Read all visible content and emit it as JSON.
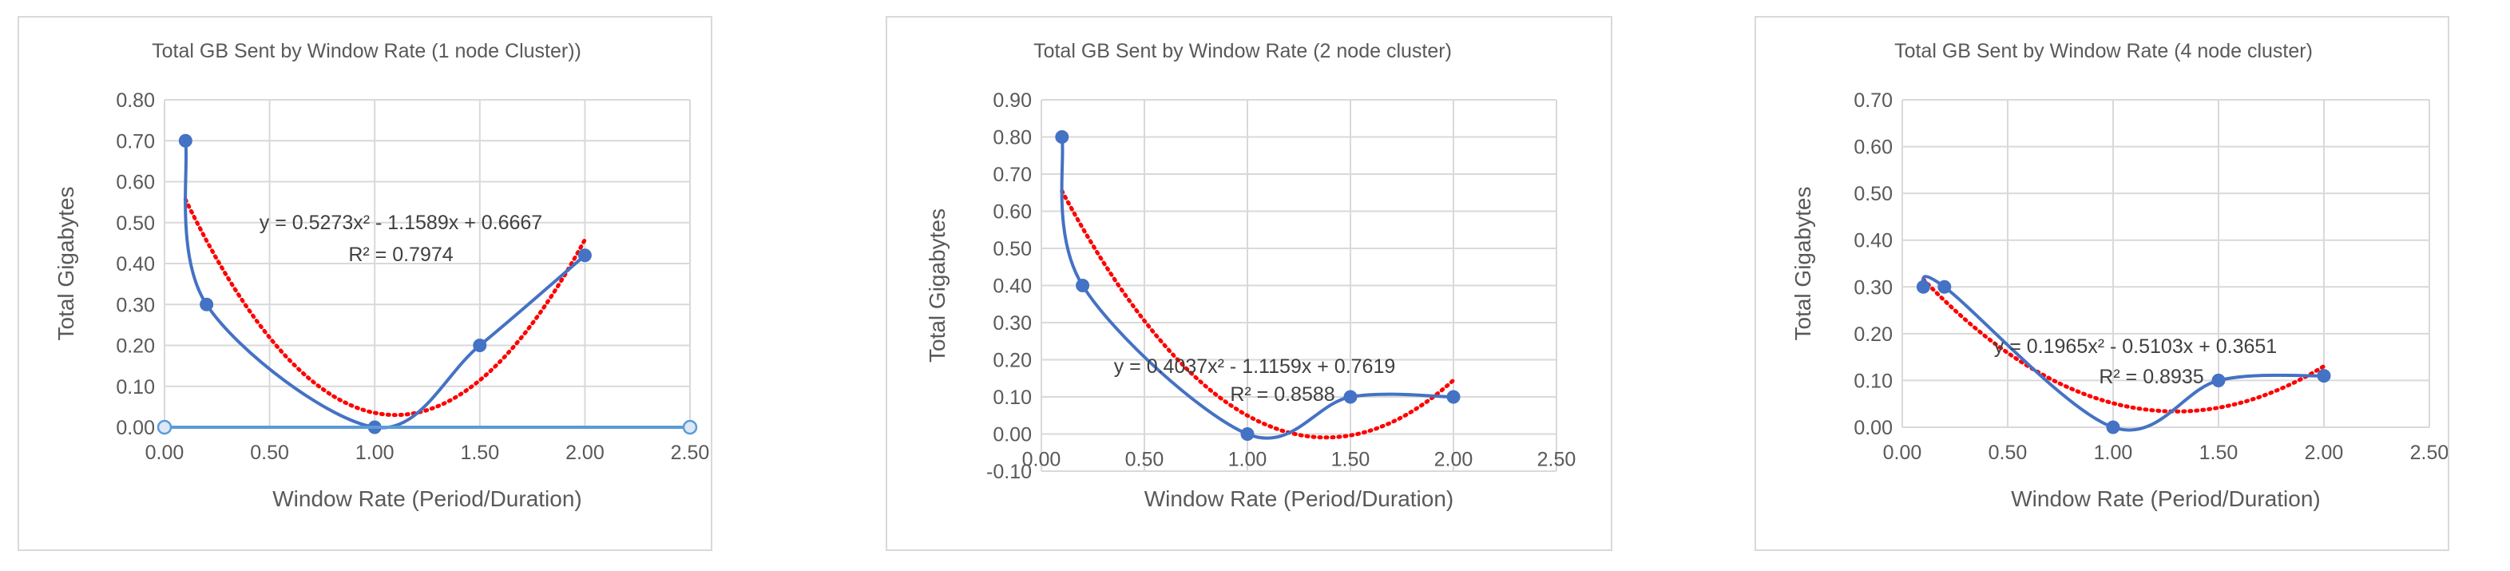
{
  "chart_data": [
    {
      "type": "scatter",
      "title": "Total GB Sent by Window Rate (1 node Cluster))",
      "xlabel": "Window Rate (Period/Duration)",
      "ylabel": "Total Gigabytes",
      "xlim": [
        0,
        2.5
      ],
      "ylim": [
        0,
        0.8
      ],
      "xticks": [
        "0.00",
        "0.50",
        "1.00",
        "1.50",
        "2.00",
        "2.50"
      ],
      "yticks": [
        "0.00",
        "0.10",
        "0.20",
        "0.30",
        "0.40",
        "0.50",
        "0.60",
        "0.70",
        "0.80"
      ],
      "grid": true,
      "series": [
        {
          "x": [
            0.1,
            0.2,
            1.0,
            1.5,
            2.0
          ],
          "y": [
            0.7,
            0.3,
            0.0,
            0.2,
            0.42
          ],
          "color": "#4472c4",
          "smooth": true
        },
        {
          "x": [
            0,
            2.5
          ],
          "y": [
            0,
            0
          ],
          "color": "#5b9bd5",
          "marker": "open-circle"
        }
      ],
      "trendline": {
        "a": 0.5273,
        "b": -1.1589,
        "c": 0.6667,
        "x_range": [
          0.1,
          2.0
        ],
        "color": "#ff0000",
        "equation": "y = 0.5273x² - 1.1589x + 0.6667",
        "r2": "R² = 0.7974"
      }
    },
    {
      "type": "scatter",
      "title": "Total GB Sent by Window Rate (2 node cluster)",
      "xlabel": "Window Rate (Period/Duration)",
      "ylabel": "Total Gigabytes",
      "xlim": [
        0,
        2.5
      ],
      "ylim": [
        -0.1,
        0.9
      ],
      "xticks": [
        "0.00",
        "0.50",
        "1.00",
        "1.50",
        "2.00",
        "2.50"
      ],
      "yticks": [
        "-0.10",
        "0.00",
        "0.10",
        "0.20",
        "0.30",
        "0.40",
        "0.50",
        "0.60",
        "0.70",
        "0.80",
        "0.90"
      ],
      "grid": true,
      "series": [
        {
          "x": [
            0.1,
            0.2,
            1.0,
            1.5,
            2.0
          ],
          "y": [
            0.8,
            0.4,
            0.0,
            0.1,
            0.1
          ],
          "color": "#4472c4",
          "smooth": true
        }
      ],
      "trendline": {
        "a": 0.4037,
        "b": -1.1159,
        "c": 0.7619,
        "x_range": [
          0.1,
          2.0
        ],
        "color": "#ff0000",
        "equation": "y = 0.4037x² - 1.1159x + 0.7619",
        "r2": "R² = 0.8588"
      }
    },
    {
      "type": "scatter",
      "title": "Total GB Sent by Window Rate (4 node cluster)",
      "xlabel": "Window Rate (Period/Duration)",
      "ylabel": "Total Gigabytes",
      "xlim": [
        0,
        2.5
      ],
      "ylim": [
        0,
        0.7
      ],
      "xticks": [
        "0.00",
        "0.50",
        "1.00",
        "1.50",
        "2.00",
        "2.50"
      ],
      "yticks": [
        "0.00",
        "0.10",
        "0.20",
        "0.30",
        "0.40",
        "0.50",
        "0.60",
        "0.70"
      ],
      "grid": true,
      "series": [
        {
          "x": [
            0.1,
            0.2,
            1.0,
            1.5,
            2.0
          ],
          "y": [
            0.3,
            0.3,
            0.0,
            0.1,
            0.11
          ],
          "color": "#4472c4",
          "smooth": true
        }
      ],
      "trendline": {
        "a": 0.1965,
        "b": -0.5103,
        "c": 0.3651,
        "x_range": [
          0.1,
          2.0
        ],
        "color": "#ff0000",
        "equation": "y = 0.1965x² - 0.5103x + 0.3651",
        "r2": "R² = 0.8935"
      }
    }
  ]
}
